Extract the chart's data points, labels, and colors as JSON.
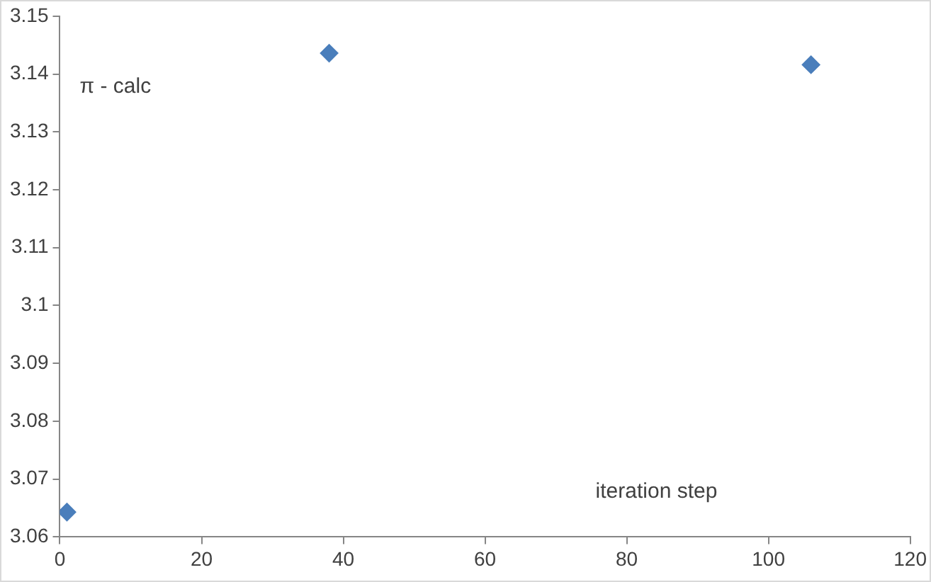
{
  "chart_data": {
    "type": "scatter",
    "xlabel": "iteration step",
    "ylabel": "π - calc",
    "x": [
      1,
      38,
      106
    ],
    "values": [
      3.0643,
      3.1436,
      3.1416
    ],
    "color": "#4a7ebb",
    "marker": "diamond",
    "xlim": [
      0,
      120
    ],
    "xticks": [
      0,
      20,
      40,
      60,
      80,
      100,
      120
    ],
    "ylim": [
      3.06,
      3.15
    ],
    "yticks": [
      3.06,
      3.07,
      3.08,
      3.09,
      3.1,
      3.11,
      3.12,
      3.13,
      3.14,
      3.15
    ],
    "grid": false,
    "legend": false
  }
}
